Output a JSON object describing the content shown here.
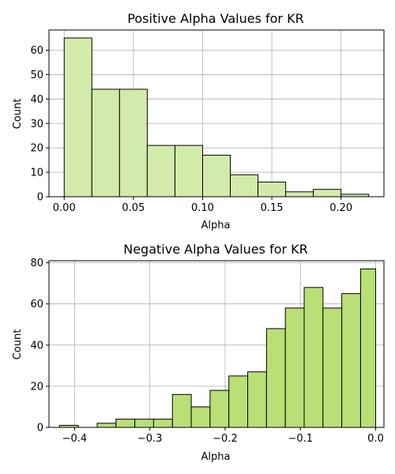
{
  "chart_data": [
    {
      "type": "bar",
      "title": "Positive Alpha Values for KR",
      "xlabel": "Alpha",
      "ylabel": "Count",
      "color": "#d3ebaa",
      "bin_edges": [
        0.0,
        0.02,
        0.04,
        0.06,
        0.08,
        0.1,
        0.12,
        0.14,
        0.16,
        0.18,
        0.2,
        0.22
      ],
      "values": [
        65,
        44,
        44,
        21,
        21,
        17,
        9,
        6,
        2,
        3,
        1
      ],
      "xlim": [
        -0.011,
        0.231
      ],
      "ylim": [
        0,
        68.25
      ],
      "xticks": [
        0.0,
        0.05,
        0.1,
        0.15,
        0.2
      ],
      "xtick_labels": [
        "0.00",
        "0.05",
        "0.10",
        "0.15",
        "0.20"
      ],
      "yticks": [
        0,
        10,
        20,
        30,
        40,
        50,
        60
      ],
      "ytick_labels": [
        "0",
        "10",
        "20",
        "30",
        "40",
        "50",
        "60"
      ],
      "grid": true
    },
    {
      "type": "bar",
      "title": "Negative Alpha Values for KR",
      "xlabel": "Alpha",
      "ylabel": "Count",
      "color": "#b9df76",
      "bin_edges": [
        -0.42,
        -0.395,
        -0.37,
        -0.345,
        -0.32,
        -0.295,
        -0.27,
        -0.245,
        -0.22,
        -0.195,
        -0.17,
        -0.145,
        -0.12,
        -0.095,
        -0.07,
        -0.045,
        -0.02,
        0.0
      ],
      "values": [
        1,
        0,
        2,
        4,
        4,
        4,
        16,
        10,
        18,
        25,
        27,
        48,
        58,
        68,
        58,
        65,
        77
      ],
      "xlim": [
        -0.434,
        0.011
      ],
      "ylim": [
        0,
        81
      ],
      "xticks": [
        -0.4,
        -0.3,
        -0.2,
        -0.1,
        0.0
      ],
      "xtick_labels": [
        "−0.4",
        "−0.3",
        "−0.2",
        "−0.1",
        "0.0"
      ],
      "yticks": [
        0,
        20,
        40,
        60,
        80
      ],
      "ytick_labels": [
        "0",
        "20",
        "40",
        "60",
        "80"
      ],
      "grid": true
    }
  ]
}
